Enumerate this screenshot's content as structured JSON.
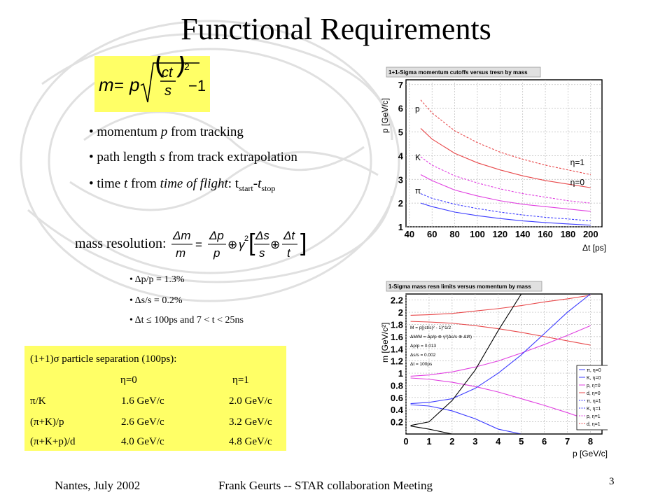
{
  "slide": {
    "title": "Functional Requirements",
    "bullets": [
      {
        "pre": "momentum ",
        "var": "p",
        "post": " from tracking"
      },
      {
        "pre": "path length ",
        "var": "s",
        "post": " from track extrapolation"
      },
      {
        "pre": "time ",
        "var": "t",
        "post": " from ",
        "italic2": "time of flight",
        "mid": ": t",
        "sub1": "start",
        "dash": "-t",
        "sub2": "stop"
      }
    ],
    "mass_resolution_label": "mass resolution:",
    "resolution_items": [
      "Δp/p = 1.3%",
      "Δs/s = 0.2%",
      "Δt  ≤  100ps  and 7 < t < 25ns"
    ],
    "separation_table": {
      "title": "(1+1)σ particle separation (100ps):",
      "columns": [
        "η=0",
        "η=1"
      ],
      "rows": [
        {
          "label": "π/K",
          "eta0": "1.6 GeV/c",
          "eta1": "2.0 GeV/c"
        },
        {
          "label": "(π+K)/p",
          "eta0": "2.6 GeV/c",
          "eta1": "3.2 GeV/c"
        },
        {
          "label": "(π+K+p)/d",
          "eta0": "4.0 GeV/c",
          "eta1": "4.8 GeV/c"
        }
      ]
    },
    "footer": {
      "location_date": "Nantes, July  2002",
      "author": "Frank Geurts -- STAR collaboration Meeting",
      "page_number": "3"
    },
    "colors": {
      "highlight": "#ffff66",
      "red": "#e8494b",
      "magenta": "#e040e0",
      "blue": "#3b3bff",
      "black": "#000000"
    }
  },
  "chart_data": [
    {
      "type": "line",
      "title": "1+1-Sigma momentum cutoffs versus tresn by mass",
      "xlabel": "Δt [ps]",
      "ylabel": "p [GeV/c]",
      "xlim": [
        37,
        210
      ],
      "ylim": [
        1,
        7.2
      ],
      "xticks": [
        40,
        60,
        80,
        100,
        120,
        140,
        160,
        180,
        200
      ],
      "yticks": [
        1,
        2,
        3,
        4,
        5,
        6,
        7
      ],
      "grid": true,
      "annotations": [
        "p",
        "K",
        "π",
        "η=1",
        "η=0"
      ],
      "x": [
        50,
        60,
        80,
        100,
        120,
        140,
        160,
        180,
        200
      ],
      "series": [
        {
          "name": "p",
          "color": "red",
          "dash": true,
          "values": [
            6.35,
            5.8,
            5.05,
            4.55,
            4.15,
            3.85,
            3.6,
            3.4,
            3.2
          ]
        },
        {
          "name": "p",
          "color": "red",
          "dash": false,
          "values": [
            5.15,
            4.7,
            4.1,
            3.7,
            3.4,
            3.15,
            2.95,
            2.8,
            2.65
          ]
        },
        {
          "name": "K",
          "color": "magenta",
          "dash": true,
          "values": [
            3.95,
            3.6,
            3.15,
            2.85,
            2.6,
            2.4,
            2.25,
            2.1,
            2.0
          ]
        },
        {
          "name": "K",
          "color": "magenta",
          "dash": false,
          "values": [
            3.2,
            2.95,
            2.55,
            2.3,
            2.1,
            1.95,
            1.85,
            1.75,
            1.65
          ]
        },
        {
          "name": "π",
          "color": "blue",
          "dash": true,
          "values": [
            2.4,
            2.2,
            1.95,
            1.77,
            1.62,
            1.5,
            1.4,
            1.33,
            1.25
          ]
        },
        {
          "name": "π",
          "color": "blue",
          "dash": false,
          "values": [
            2.0,
            1.85,
            1.62,
            1.47,
            1.35,
            1.25,
            1.18,
            1.12,
            1.07
          ]
        }
      ]
    },
    {
      "type": "line",
      "title": "1-Sigma mass resn limits versus momentum by mass",
      "xlabel": "p [GeV/c]",
      "ylabel": "m [GeV/c²]",
      "xlim": [
        0,
        8.5
      ],
      "ylim": [
        0,
        2.3
      ],
      "xticks": [
        0,
        1,
        2,
        3,
        4,
        5,
        6,
        7,
        8
      ],
      "yticks": [
        0.2,
        0.4,
        0.6,
        0.8,
        1,
        1.2,
        1.4,
        1.6,
        1.8,
        2,
        2.2
      ],
      "grid": true,
      "legend": [
        "π, η=0",
        "K, η=0",
        "p, η=0",
        "d, η=0",
        "π, η=1",
        "K, η=1",
        "p, η=1",
        "d, η=1"
      ],
      "inset_text": [
        "M = p[(ct/s)² - 1]^1/2",
        "ΔM/M = Δp/p ⊕ γ²(Δs/s ⊕ Δt/t)",
        "Δp/p = 0.013",
        "Δs/s = 0.002",
        "Δt = 100ps"
      ],
      "x": [
        0.2,
        1,
        2,
        3,
        4,
        5,
        6,
        7,
        8
      ],
      "series": [
        {
          "name": "d",
          "color": "red",
          "values": [
            1.95,
            1.96,
            1.98,
            2.02,
            2.06,
            2.11,
            2.17,
            2.22,
            2.28
          ]
        },
        {
          "name": "d",
          "color": "red",
          "values": [
            1.85,
            1.84,
            1.82,
            1.78,
            1.73,
            1.67,
            1.6,
            1.53,
            1.46
          ]
        },
        {
          "name": "p",
          "color": "magenta",
          "values": [
            0.95,
            0.97,
            1.02,
            1.1,
            1.2,
            1.33,
            1.47,
            1.62,
            1.78
          ]
        },
        {
          "name": "p",
          "color": "magenta",
          "values": [
            0.92,
            0.9,
            0.85,
            0.78,
            0.69,
            0.58,
            0.47,
            0.35,
            0.22
          ]
        },
        {
          "name": "K",
          "color": "blue",
          "values": [
            0.5,
            0.52,
            0.58,
            0.75,
            1.0,
            1.3,
            1.65,
            2.0,
            2.3
          ]
        },
        {
          "name": "K",
          "color": "blue",
          "values": [
            0.48,
            0.46,
            0.38,
            0.25,
            0.08,
            0.0,
            0.0,
            0.0,
            0.0
          ]
        },
        {
          "name": "π",
          "color": "black",
          "values": [
            0.14,
            0.2,
            0.55,
            1.05,
            1.7,
            2.3,
            2.3,
            2.3,
            2.3
          ]
        },
        {
          "name": "π",
          "color": "black",
          "values": [
            0.13,
            0.08,
            0.0,
            0.0,
            0.0,
            0.0,
            0.0,
            0.0,
            0.0
          ]
        }
      ]
    }
  ]
}
